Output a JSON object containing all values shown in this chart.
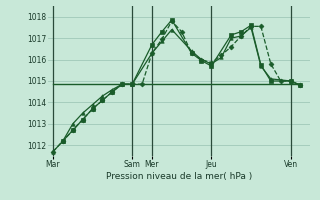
{
  "background_color": "#c8e8d8",
  "grid_color": "#a0c8b8",
  "line_color": "#1a5c2a",
  "vline_color": "#2a4a3a",
  "title": "Pression niveau de la mer( hPa )",
  "ylim": [
    1011.5,
    1018.5
  ],
  "yticks": [
    1012,
    1013,
    1014,
    1015,
    1016,
    1017,
    1018
  ],
  "day_labels": [
    "Mar",
    "Sam",
    "Mer",
    "Jeu",
    "Ven"
  ],
  "day_positions": [
    0,
    8,
    10,
    16,
    24
  ],
  "xlim": [
    -0.5,
    26
  ],
  "series": [
    {
      "x": [
        0,
        1,
        2,
        3,
        4,
        5,
        6,
        7,
        8,
        9,
        10,
        11,
        12,
        13,
        14,
        15,
        16,
        17,
        18,
        19,
        20,
        21,
        22,
        23,
        24,
        25
      ],
      "y": [
        1011.7,
        1012.2,
        1012.7,
        1013.2,
        1013.7,
        1014.1,
        1014.5,
        1014.85,
        1014.85,
        1014.85,
        1016.3,
        1016.95,
        1017.8,
        1017.3,
        1016.3,
        1016.0,
        1015.85,
        1016.2,
        1016.6,
        1017.1,
        1017.55,
        1017.55,
        1015.8,
        1015.0,
        1015.0,
        1014.8
      ],
      "style": "--",
      "marker": "D",
      "ms": 2.5,
      "lw": 0.9
    },
    {
      "x": [
        1,
        2,
        3,
        4,
        5,
        6,
        7,
        8,
        10,
        11,
        12,
        14,
        15,
        16,
        18,
        19,
        20,
        21,
        22,
        24,
        25
      ],
      "y": [
        1012.2,
        1012.7,
        1013.2,
        1013.7,
        1014.1,
        1014.5,
        1014.85,
        1014.85,
        1016.7,
        1017.3,
        1017.85,
        1016.3,
        1015.95,
        1015.7,
        1017.15,
        1017.3,
        1017.6,
        1015.75,
        1015.0,
        1015.0,
        1014.8
      ],
      "style": "-",
      "marker": "s",
      "ms": 2.5,
      "lw": 0.9
    },
    {
      "x": [
        0,
        1,
        2,
        3,
        4,
        5,
        6,
        7,
        8,
        10,
        11,
        12,
        14,
        15,
        16,
        17,
        18,
        19,
        20,
        21,
        22,
        24,
        25
      ],
      "y": [
        1011.7,
        1012.2,
        1013.0,
        1013.5,
        1013.9,
        1014.3,
        1014.6,
        1014.85,
        1014.85,
        1016.3,
        1016.85,
        1017.4,
        1016.4,
        1016.0,
        1015.8,
        1016.1,
        1017.0,
        1017.1,
        1017.5,
        1015.7,
        1015.1,
        1015.0,
        1014.8
      ],
      "style": "-",
      "marker": "^",
      "ms": 2.5,
      "lw": 0.9
    },
    {
      "x": [
        0,
        25
      ],
      "y": [
        1014.85,
        1014.85
      ],
      "style": "-",
      "marker": "None",
      "ms": 0,
      "lw": 1.0
    }
  ]
}
